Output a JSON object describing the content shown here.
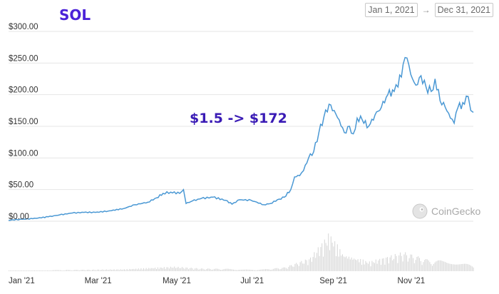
{
  "header": {
    "ticker": "SOL",
    "start_date": "Jan 1, 2021",
    "end_date": "Dec 31, 2021",
    "arrow": "→"
  },
  "annotation": "$1.5 -> $172",
  "watermark": "CoinGecko",
  "colors": {
    "line": "#4a98d4",
    "volume": "#d6d6d6",
    "grid": "#e6e6e6"
  },
  "chart_data": {
    "type": "line",
    "series": [
      {
        "values": [
          {
            "x": "2021-01-01",
            "y": 1.5
          },
          {
            "x": "2021-01-10",
            "y": 3
          },
          {
            "x": "2021-01-20",
            "y": 4
          },
          {
            "x": "2021-02-01",
            "y": 7
          },
          {
            "x": "2021-02-10",
            "y": 10
          },
          {
            "x": "2021-02-20",
            "y": 13
          },
          {
            "x": "2021-03-01",
            "y": 14
          },
          {
            "x": "2021-03-10",
            "y": 14
          },
          {
            "x": "2021-03-20",
            "y": 16
          },
          {
            "x": "2021-04-01",
            "y": 20
          },
          {
            "x": "2021-04-10",
            "y": 26
          },
          {
            "x": "2021-04-20",
            "y": 30
          },
          {
            "x": "2021-04-27",
            "y": 37
          },
          {
            "x": "2021-05-02",
            "y": 44
          },
          {
            "x": "2021-05-08",
            "y": 46
          },
          {
            "x": "2021-05-15",
            "y": 44
          },
          {
            "x": "2021-05-18",
            "y": 50
          },
          {
            "x": "2021-05-20",
            "y": 28
          },
          {
            "x": "2021-05-25",
            "y": 32
          },
          {
            "x": "2021-06-01",
            "y": 36
          },
          {
            "x": "2021-06-10",
            "y": 38
          },
          {
            "x": "2021-06-20",
            "y": 33
          },
          {
            "x": "2021-06-25",
            "y": 27
          },
          {
            "x": "2021-07-01",
            "y": 34
          },
          {
            "x": "2021-07-10",
            "y": 33
          },
          {
            "x": "2021-07-20",
            "y": 26
          },
          {
            "x": "2021-07-25",
            "y": 28
          },
          {
            "x": "2021-08-01",
            "y": 35
          },
          {
            "x": "2021-08-05",
            "y": 38
          },
          {
            "x": "2021-08-10",
            "y": 50
          },
          {
            "x": "2021-08-13",
            "y": 70
          },
          {
            "x": "2021-08-17",
            "y": 72
          },
          {
            "x": "2021-08-20",
            "y": 80
          },
          {
            "x": "2021-08-24",
            "y": 100
          },
          {
            "x": "2021-08-28",
            "y": 110
          },
          {
            "x": "2021-09-01",
            "y": 140
          },
          {
            "x": "2021-09-05",
            "y": 165
          },
          {
            "x": "2021-09-09",
            "y": 185
          },
          {
            "x": "2021-09-13",
            "y": 175
          },
          {
            "x": "2021-09-17",
            "y": 160
          },
          {
            "x": "2021-09-21",
            "y": 140
          },
          {
            "x": "2021-09-25",
            "y": 150
          },
          {
            "x": "2021-09-28",
            "y": 138
          },
          {
            "x": "2021-10-01",
            "y": 163
          },
          {
            "x": "2021-10-05",
            "y": 160
          },
          {
            "x": "2021-10-10",
            "y": 150
          },
          {
            "x": "2021-10-15",
            "y": 168
          },
          {
            "x": "2021-10-20",
            "y": 180
          },
          {
            "x": "2021-10-25",
            "y": 200
          },
          {
            "x": "2021-10-30",
            "y": 205
          },
          {
            "x": "2021-11-02",
            "y": 212
          },
          {
            "x": "2021-11-06",
            "y": 248
          },
          {
            "x": "2021-11-09",
            "y": 258
          },
          {
            "x": "2021-11-12",
            "y": 232
          },
          {
            "x": "2021-11-16",
            "y": 215
          },
          {
            "x": "2021-11-20",
            "y": 230
          },
          {
            "x": "2021-11-24",
            "y": 212
          },
          {
            "x": "2021-11-28",
            "y": 205
          },
          {
            "x": "2021-12-01",
            "y": 225
          },
          {
            "x": "2021-12-05",
            "y": 190
          },
          {
            "x": "2021-12-09",
            "y": 180
          },
          {
            "x": "2021-12-13",
            "y": 163
          },
          {
            "x": "2021-12-16",
            "y": 155
          },
          {
            "x": "2021-12-19",
            "y": 180
          },
          {
            "x": "2021-12-24",
            "y": 185
          },
          {
            "x": "2021-12-27",
            "y": 197
          },
          {
            "x": "2021-12-29",
            "y": 175
          },
          {
            "x": "2021-12-31",
            "y": 172
          }
        ]
      }
    ],
    "x_range": [
      "2021-01-01",
      "2021-12-31"
    ],
    "ylim": [
      0,
      300
    ],
    "y_ticks": [
      "$0.00",
      "$50.00",
      "$100.00",
      "$150.00",
      "$200.00",
      "$250.00",
      "$300.00"
    ],
    "x_ticks": [
      {
        "label": "Jan '21",
        "date": "2021-01-01"
      },
      {
        "label": "Mar '21",
        "date": "2021-03-01"
      },
      {
        "label": "May '21",
        "date": "2021-05-01"
      },
      {
        "label": "Jul '21",
        "date": "2021-07-01"
      },
      {
        "label": "Sep '21",
        "date": "2021-09-01"
      },
      {
        "label": "Nov '21",
        "date": "2021-11-01"
      }
    ],
    "volume": {
      "shown": true,
      "levels": [
        {
          "x": "2021-01-01",
          "v": 0.01
        },
        {
          "x": "2021-02-10",
          "v": 0.03
        },
        {
          "x": "2021-04-01",
          "v": 0.05
        },
        {
          "x": "2021-05-10",
          "v": 0.12
        },
        {
          "x": "2021-06-01",
          "v": 0.07
        },
        {
          "x": "2021-07-20",
          "v": 0.05
        },
        {
          "x": "2021-08-05",
          "v": 0.1
        },
        {
          "x": "2021-08-25",
          "v": 0.35
        },
        {
          "x": "2021-09-09",
          "v": 1.0
        },
        {
          "x": "2021-09-20",
          "v": 0.45
        },
        {
          "x": "2021-10-10",
          "v": 0.25
        },
        {
          "x": "2021-11-06",
          "v": 0.5
        },
        {
          "x": "2021-11-25",
          "v": 0.3
        },
        {
          "x": "2021-12-15",
          "v": 0.25
        },
        {
          "x": "2021-12-31",
          "v": 0.15
        }
      ]
    },
    "grid": true
  }
}
